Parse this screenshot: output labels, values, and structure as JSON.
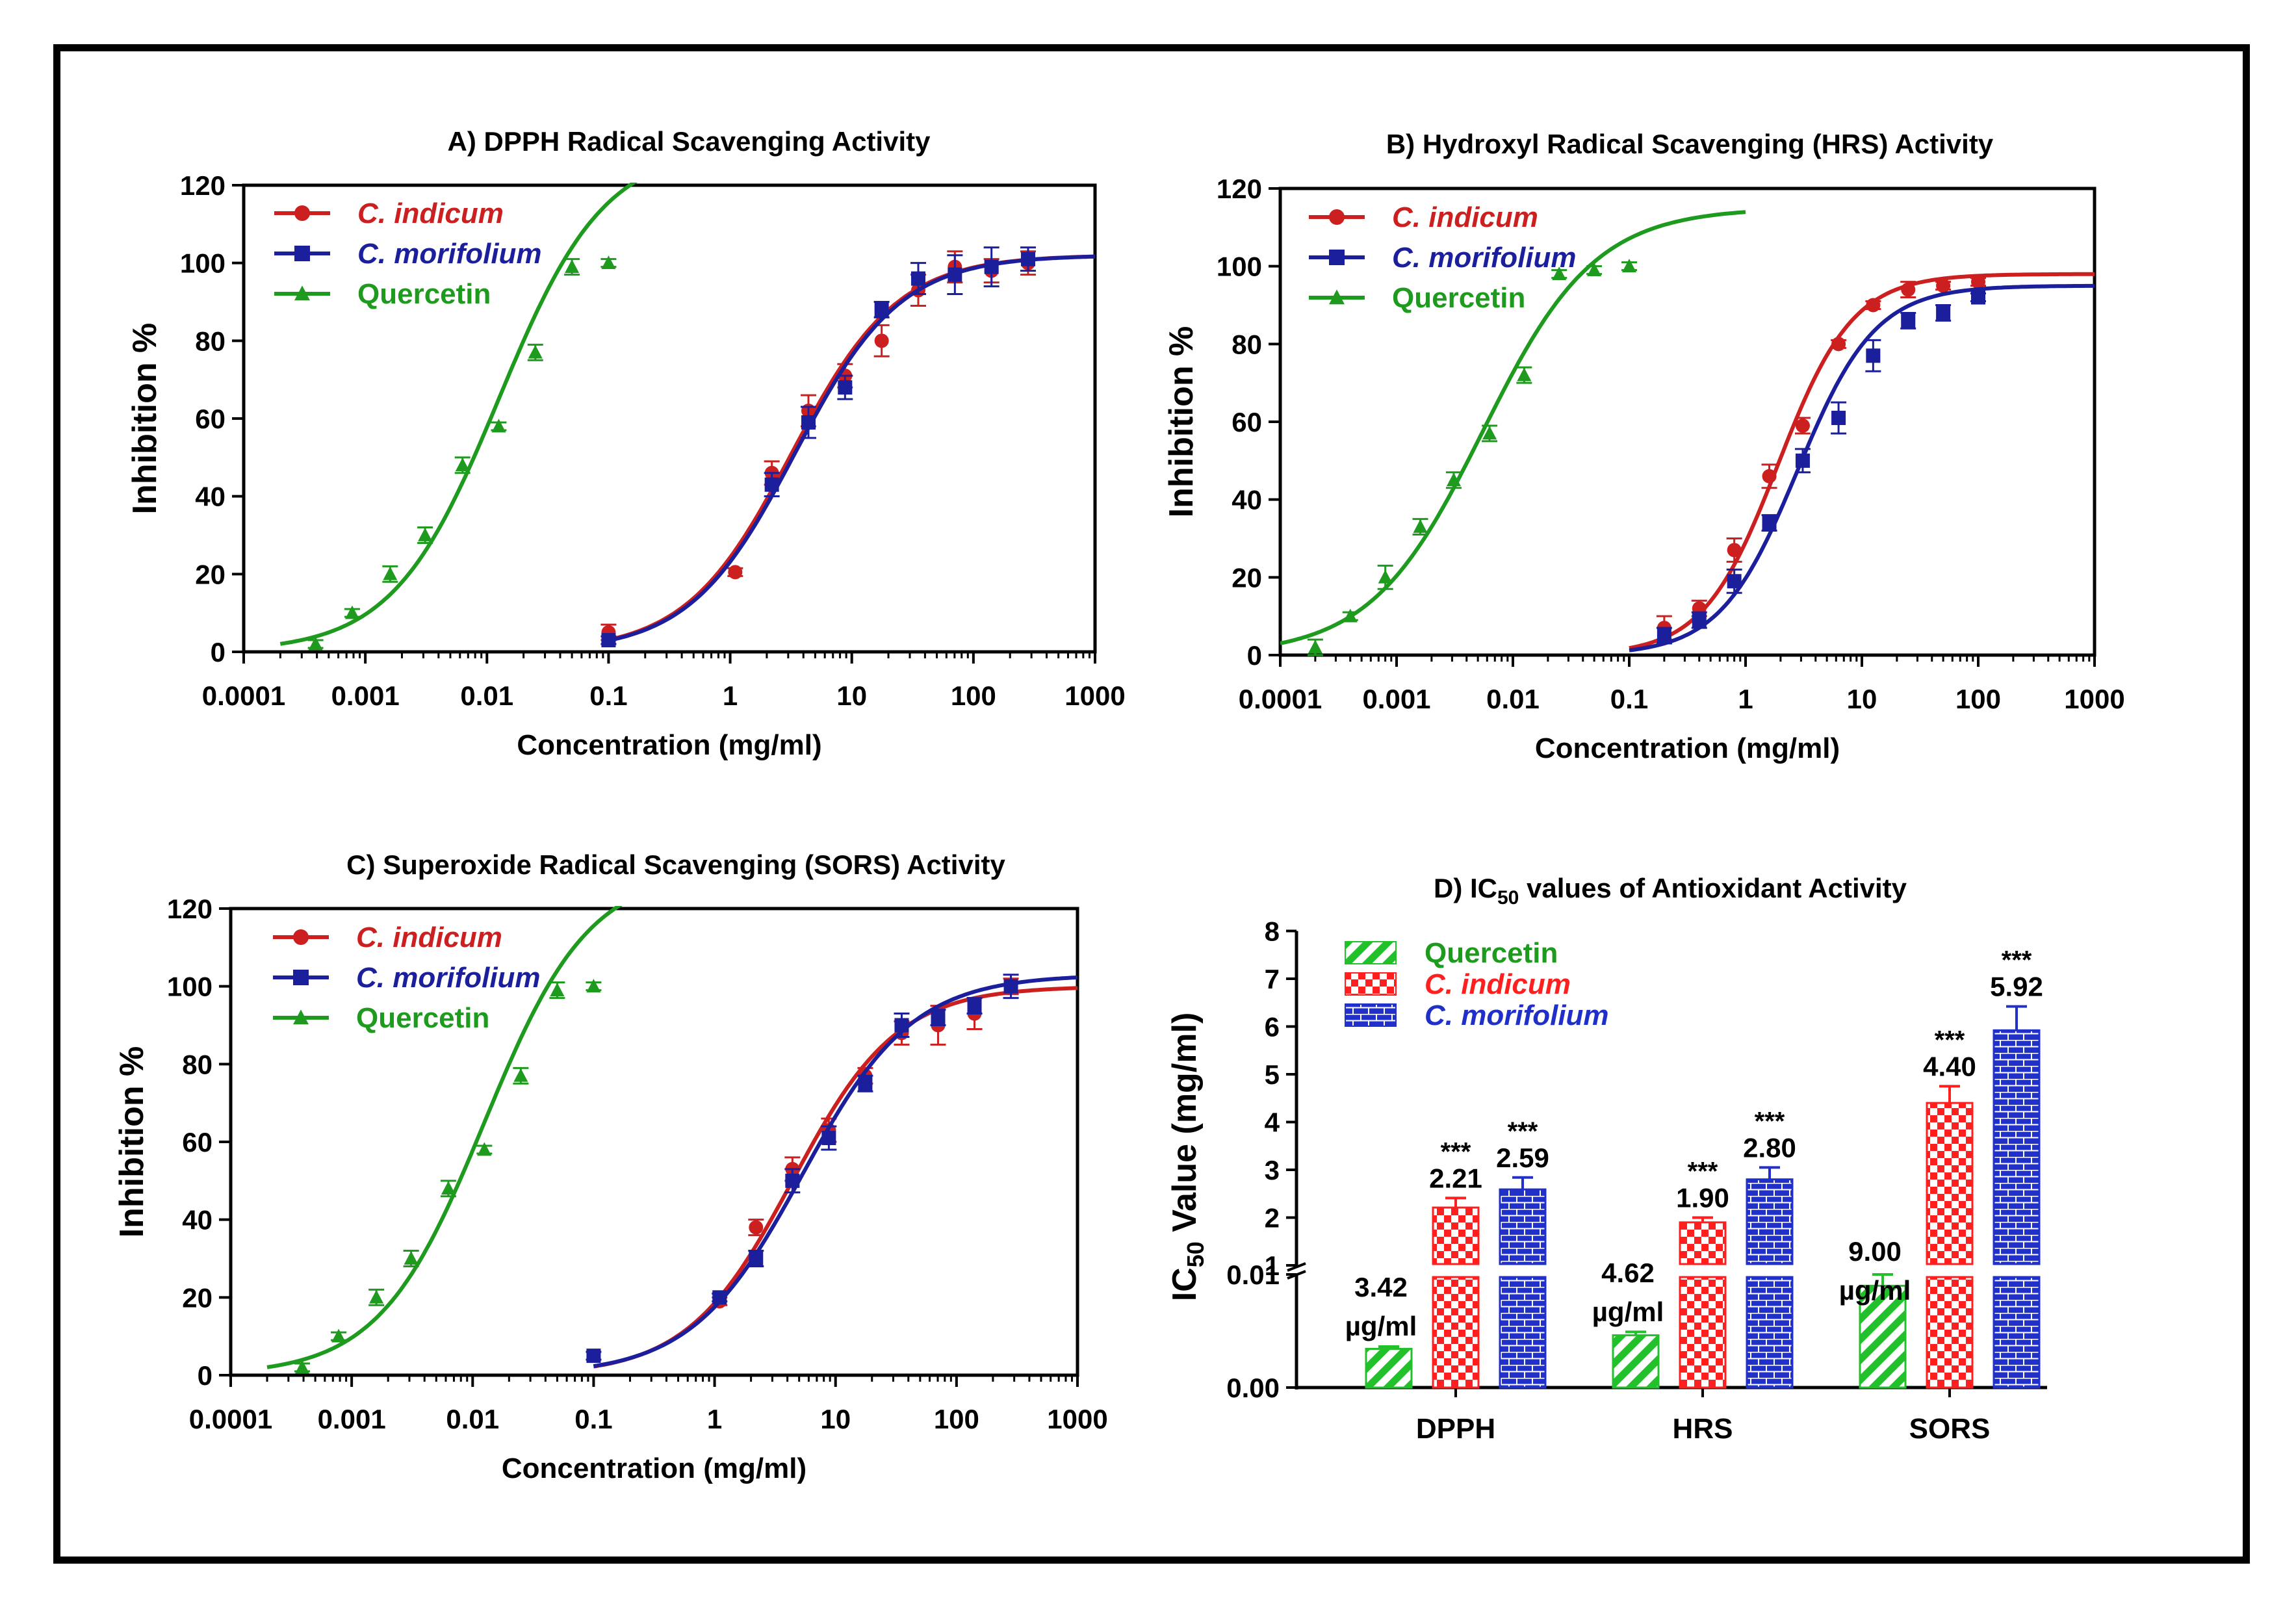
{
  "colors": {
    "indicum": "#cc1f1f",
    "morifolium": "#1c1f9c",
    "quercetin": "#1e9a1e",
    "bar_green": "#22c02a",
    "bar_red": "#ff1f1f",
    "bar_blue": "#2030c8"
  },
  "chart_data": [
    {
      "id": "A",
      "type": "scatter",
      "title": "A) DPPH Radical Scavenging Activity",
      "xlabel": "Concentration (mg/ml)",
      "ylabel": "Inhibition %",
      "xscale": "log",
      "xlim": [
        0.0001,
        1000
      ],
      "ylim": [
        0,
        120
      ],
      "xticks": [
        0.0001,
        0.001,
        0.01,
        0.1,
        1,
        10,
        100,
        1000
      ],
      "xtick_labels": [
        "0.0001",
        "0.001",
        "0.01",
        "0.1",
        "1",
        "10",
        "100",
        "1000"
      ],
      "yticks": [
        0,
        20,
        40,
        60,
        80,
        100,
        120
      ],
      "ytick_labels": [
        "0",
        "20",
        "40",
        "60",
        "80",
        "100",
        "120"
      ],
      "legend_position": "top-left",
      "series": [
        {
          "name": "C. indicum",
          "color_key": "indicum",
          "marker": "circle",
          "italic": true,
          "x": [
            0.1,
            1.1,
            2.2,
            4.4,
            8.8,
            17.6,
            35.2,
            70.4,
            140.8,
            281.6
          ],
          "y": [
            5,
            20.5,
            46,
            62,
            71,
            80,
            93,
            99,
            98,
            100
          ],
          "err": [
            2,
            1,
            3,
            4,
            3,
            4,
            4,
            4,
            3,
            3
          ],
          "fit": {
            "bottom": 0,
            "top": 102,
            "ec50": 3.2,
            "hill": 1.0,
            "xmin": 0.1,
            "xmax": 1000
          }
        },
        {
          "name": "C. morifolium",
          "color_key": "morifolium",
          "marker": "square",
          "italic": true,
          "x": [
            0.1,
            2.2,
            4.4,
            8.8,
            17.6,
            35.2,
            70.4,
            140.8,
            281.6
          ],
          "y": [
            3,
            43,
            59,
            68,
            88,
            96,
            97,
            99,
            101
          ],
          "err": [
            1,
            3,
            4,
            3,
            2,
            4,
            5,
            5,
            3
          ],
          "fit": {
            "bottom": 0,
            "top": 102,
            "ec50": 3.4,
            "hill": 1.0,
            "xmin": 0.1,
            "xmax": 1000
          }
        },
        {
          "name": "Quercetin",
          "color_key": "quercetin",
          "marker": "triangle",
          "italic": false,
          "x": [
            0.00039,
            0.00078,
            0.0016,
            0.0031,
            0.0063,
            0.0125,
            0.025,
            0.05,
            0.1
          ],
          "y": [
            2,
            10,
            20,
            30,
            48,
            58,
            77,
            99,
            100
          ],
          "err": [
            1,
            1,
            2,
            2,
            2,
            1,
            2,
            2,
            1
          ],
          "fit": {
            "bottom": 0,
            "top": 130,
            "ec50": 0.0125,
            "hill": 1.0,
            "xmin": 0.0002,
            "xmax": 0.2
          }
        }
      ]
    },
    {
      "id": "B",
      "type": "scatter",
      "title": "B) Hydroxyl Radical Scavenging (HRS) Activity",
      "xlabel": "Concentration (mg/ml)",
      "ylabel": "Inhibition %",
      "xscale": "log",
      "xlim": [
        0.0001,
        1000
      ],
      "ylim": [
        0,
        120
      ],
      "xticks": [
        0.0001,
        0.001,
        0.01,
        0.1,
        1,
        10,
        100,
        1000
      ],
      "xtick_labels": [
        "0.0001",
        "0.001",
        "0.01",
        "0.1",
        "1",
        "10",
        "100",
        "1000"
      ],
      "yticks": [
        0,
        20,
        40,
        60,
        80,
        100,
        120
      ],
      "ytick_labels": [
        "0",
        "20",
        "40",
        "60",
        "80",
        "100",
        "120"
      ],
      "legend_position": "top-left",
      "series": [
        {
          "name": "C. indicum",
          "color_key": "indicum",
          "marker": "circle",
          "italic": true,
          "x": [
            0.2,
            0.4,
            0.8,
            1.6,
            3.1,
            6.3,
            12.5,
            25,
            50,
            100
          ],
          "y": [
            7,
            12,
            27,
            46,
            59,
            80,
            90,
            94,
            95,
            96
          ],
          "err": [
            3,
            2,
            3,
            3,
            2,
            1,
            1,
            2,
            1,
            1
          ],
          "fit": {
            "bottom": 0,
            "top": 98,
            "ec50": 1.9,
            "hill": 1.35,
            "xmin": 0.1,
            "xmax": 1000
          }
        },
        {
          "name": "C. morifolium",
          "color_key": "morifolium",
          "marker": "square",
          "italic": true,
          "x": [
            0.2,
            0.4,
            0.8,
            1.6,
            3.1,
            6.3,
            12.5,
            25,
            50,
            100
          ],
          "y": [
            5,
            9,
            19,
            34,
            50,
            61,
            77,
            86,
            88,
            92
          ],
          "err": [
            2,
            2,
            3,
            2,
            3,
            4,
            4,
            2,
            2,
            1
          ],
          "fit": {
            "bottom": 0,
            "top": 95,
            "ec50": 2.8,
            "hill": 1.3,
            "xmin": 0.1,
            "xmax": 1000
          }
        },
        {
          "name": "Quercetin",
          "color_key": "quercetin",
          "marker": "triangle",
          "italic": false,
          "x": [
            0.0002,
            0.0004,
            0.0008,
            0.0016,
            0.0031,
            0.0063,
            0.0125,
            0.025,
            0.05,
            0.1
          ],
          "y": [
            2,
            10,
            20,
            33,
            45,
            57,
            72,
            98,
            99,
            100
          ],
          "err": [
            2,
            1,
            3,
            2,
            2,
            2,
            2,
            1,
            1,
            1
          ],
          "fit": {
            "bottom": 0,
            "top": 115,
            "ec50": 0.0055,
            "hill": 0.9,
            "xmin": 0.0001,
            "xmax": 1
          }
        }
      ]
    },
    {
      "id": "C",
      "type": "scatter",
      "title": "C) Superoxide Radical Scavenging (SORS) Activity",
      "xlabel": "Concentration (mg/ml)",
      "ylabel": "Inhibition %",
      "xscale": "log",
      "xlim": [
        0.0001,
        1000
      ],
      "ylim": [
        0,
        120
      ],
      "xticks": [
        0.0001,
        0.001,
        0.01,
        0.1,
        1,
        10,
        100,
        1000
      ],
      "xtick_labels": [
        "0.0001",
        "0.001",
        "0.01",
        "0.1",
        "1",
        "10",
        "100",
        "1000"
      ],
      "yticks": [
        0,
        20,
        40,
        60,
        80,
        100,
        120
      ],
      "ytick_labels": [
        "0",
        "20",
        "40",
        "60",
        "80",
        "100",
        "120"
      ],
      "legend_position": "top-left",
      "series": [
        {
          "name": "C. indicum",
          "color_key": "indicum",
          "marker": "circle",
          "italic": true,
          "x": [
            1.1,
            2.2,
            4.4,
            8.8,
            17.6,
            35.2,
            70.4,
            140.8,
            281.6
          ],
          "y": [
            19,
            38,
            53,
            63,
            77,
            88,
            90,
            93,
            100
          ],
          "err": [
            1,
            2,
            3,
            3,
            2,
            3,
            5,
            4,
            2
          ],
          "fit": {
            "bottom": 0,
            "top": 100,
            "ec50": 4.4,
            "hill": 1.0,
            "xmin": 0.1,
            "xmax": 1000
          }
        },
        {
          "name": "C. morifolium",
          "color_key": "morifolium",
          "marker": "square",
          "italic": true,
          "x": [
            0.1,
            1.1,
            2.2,
            4.4,
            8.8,
            17.6,
            35.2,
            70.4,
            140.8,
            281.6
          ],
          "y": [
            5,
            20,
            30,
            50,
            61,
            75,
            90,
            92,
            95,
            100
          ],
          "err": [
            1,
            1,
            2,
            3,
            3,
            2,
            3,
            2,
            2,
            3
          ],
          "fit": {
            "bottom": 0,
            "top": 103,
            "ec50": 5.3,
            "hill": 0.95,
            "xmin": 0.1,
            "xmax": 1000
          }
        },
        {
          "name": "Quercetin",
          "color_key": "quercetin",
          "marker": "triangle",
          "italic": false,
          "x": [
            0.00039,
            0.00078,
            0.0016,
            0.0031,
            0.0063,
            0.0125,
            0.025,
            0.05,
            0.1
          ],
          "y": [
            2,
            10,
            20,
            30,
            48,
            58,
            77,
            99,
            100
          ],
          "err": [
            1,
            1,
            2,
            2,
            2,
            1,
            2,
            2,
            1
          ],
          "fit": {
            "bottom": 0,
            "top": 130,
            "ec50": 0.0125,
            "hill": 1.0,
            "xmin": 0.0002,
            "xmax": 0.2
          }
        }
      ]
    },
    {
      "id": "D",
      "type": "bar",
      "title_prefix": "D) IC",
      "title_sub": "50",
      "title_suffix": " values of Antioxidant Activity",
      "ylabel_prefix": "IC",
      "ylabel_sub": "50",
      "ylabel_suffix": " Value (mg/ml)",
      "categories": [
        "DPPH",
        "HRS",
        "SORS"
      ],
      "y_axis_broken": true,
      "y_lower_range": [
        0,
        0.01
      ],
      "y_lower_ticks": [
        "0.00",
        "0.01"
      ],
      "y_upper_range": [
        1,
        8
      ],
      "y_upper_ticks": [
        "1",
        "2",
        "3",
        "4",
        "5",
        "6",
        "7",
        "8"
      ],
      "legend_position": "top-left",
      "series": [
        {
          "name": "Quercetin",
          "color_key": "bar_green",
          "pattern": "diagonal",
          "italic": false,
          "values": [
            0.00342,
            0.00462,
            0.009
          ],
          "errors": [
            0.0002,
            0.0003,
            0.001
          ],
          "value_labels": [
            "3.42",
            "4.62",
            "9.00"
          ],
          "unit_labels": [
            "µg/ml",
            "µg/ml",
            "µg/ml"
          ],
          "significance": [
            "",
            "",
            ""
          ]
        },
        {
          "name": "C. indicum",
          "color_key": "bar_red",
          "pattern": "checker",
          "italic": true,
          "values": [
            2.21,
            1.9,
            4.4
          ],
          "errors": [
            0.2,
            0.1,
            0.35
          ],
          "value_labels": [
            "2.21",
            "1.90",
            "4.40"
          ],
          "significance": [
            "***",
            "***",
            "***"
          ]
        },
        {
          "name": "C. morifolium",
          "color_key": "bar_blue",
          "pattern": "brick",
          "italic": true,
          "values": [
            2.59,
            2.8,
            5.92
          ],
          "errors": [
            0.25,
            0.25,
            0.5
          ],
          "value_labels": [
            "2.59",
            "2.80",
            "5.92"
          ],
          "significance": [
            "***",
            "***",
            "***"
          ]
        }
      ]
    }
  ]
}
